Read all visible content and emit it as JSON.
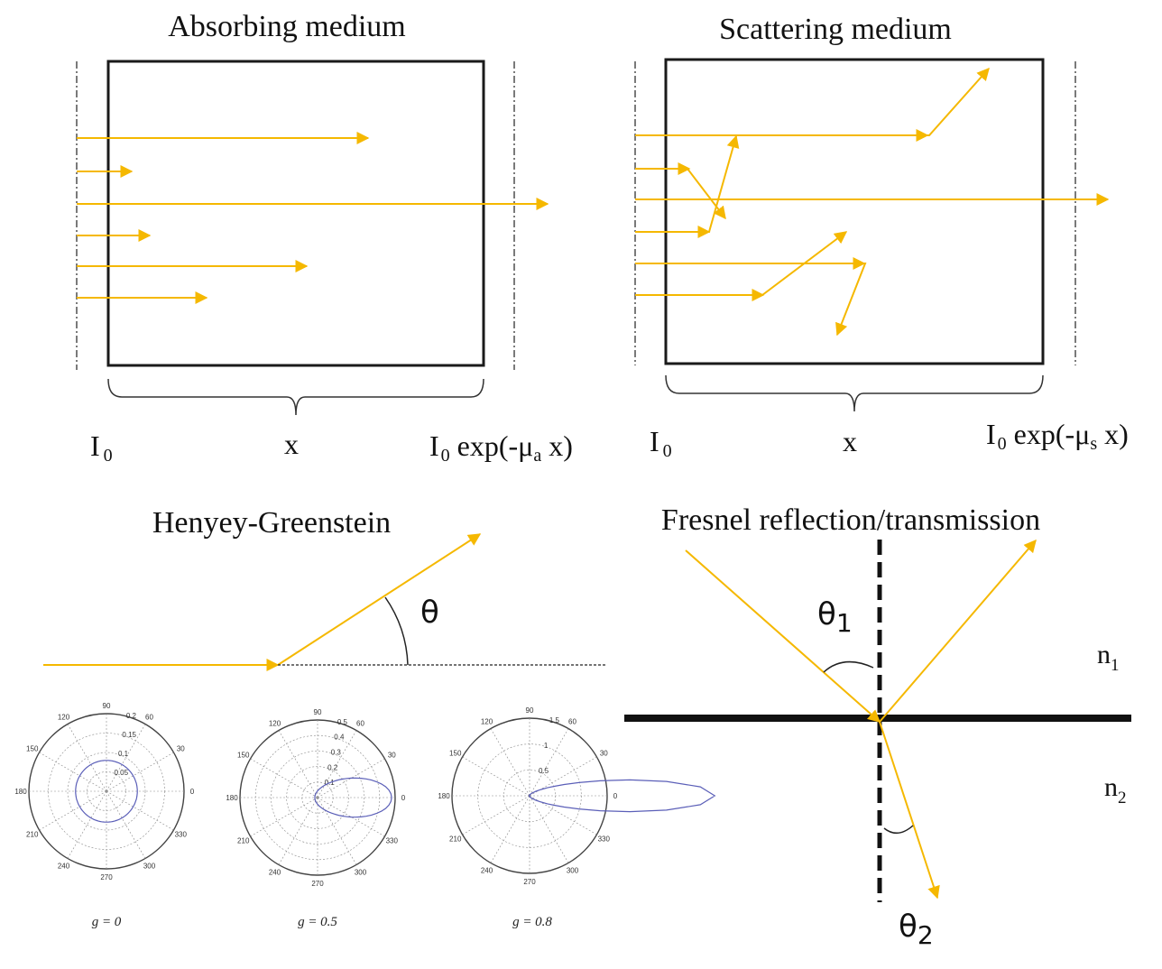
{
  "colors": {
    "ray": "#f5b800",
    "box": "#1a1a1a",
    "polar_curve": "#5b5fb8",
    "grid": "#8a8a8a"
  },
  "panels": {
    "absorbing": {
      "title": "Absorbing medium",
      "label_in": "I",
      "label_in_sub": "0",
      "label_x": "x",
      "label_out_I": "I",
      "label_out_sub0": "0",
      "label_out_expr": " exp(-μ",
      "label_out_sub": "a",
      "label_out_tail": " x)"
    },
    "scattering": {
      "title": "Scattering medium",
      "label_in": "I",
      "label_in_sub": "0",
      "label_x": "x",
      "label_out_I": "I",
      "label_out_sub0": "0",
      "label_out_expr": " exp(-μ",
      "label_out_sub": "s",
      "label_out_tail": " x)"
    },
    "hg": {
      "title": "Henyey-Greenstein",
      "theta": "θ",
      "plots": [
        {
          "caption": "g = 0",
          "radial_ticks": [
            "0.05",
            "0.1",
            "0.15",
            "0.2"
          ]
        },
        {
          "caption": "g = 0.5",
          "radial_ticks": [
            "0.1",
            "0.2",
            "0.3",
            "0.4",
            "0.5"
          ]
        },
        {
          "caption": "g = 0.8",
          "radial_ticks": [
            "0.5",
            "1",
            "1.5"
          ]
        }
      ],
      "angle_ticks": [
        "0",
        "30",
        "60",
        "90",
        "120",
        "150",
        "180",
        "210",
        "240",
        "270",
        "300",
        "330"
      ]
    },
    "fresnel": {
      "title": "Fresnel reflection/transmission",
      "theta1": "θ",
      "theta1_sub": "1",
      "theta2": "θ",
      "theta2_sub": "2",
      "n1": "n",
      "n1_sub": "1",
      "n2": "n",
      "n2_sub": "2"
    }
  }
}
